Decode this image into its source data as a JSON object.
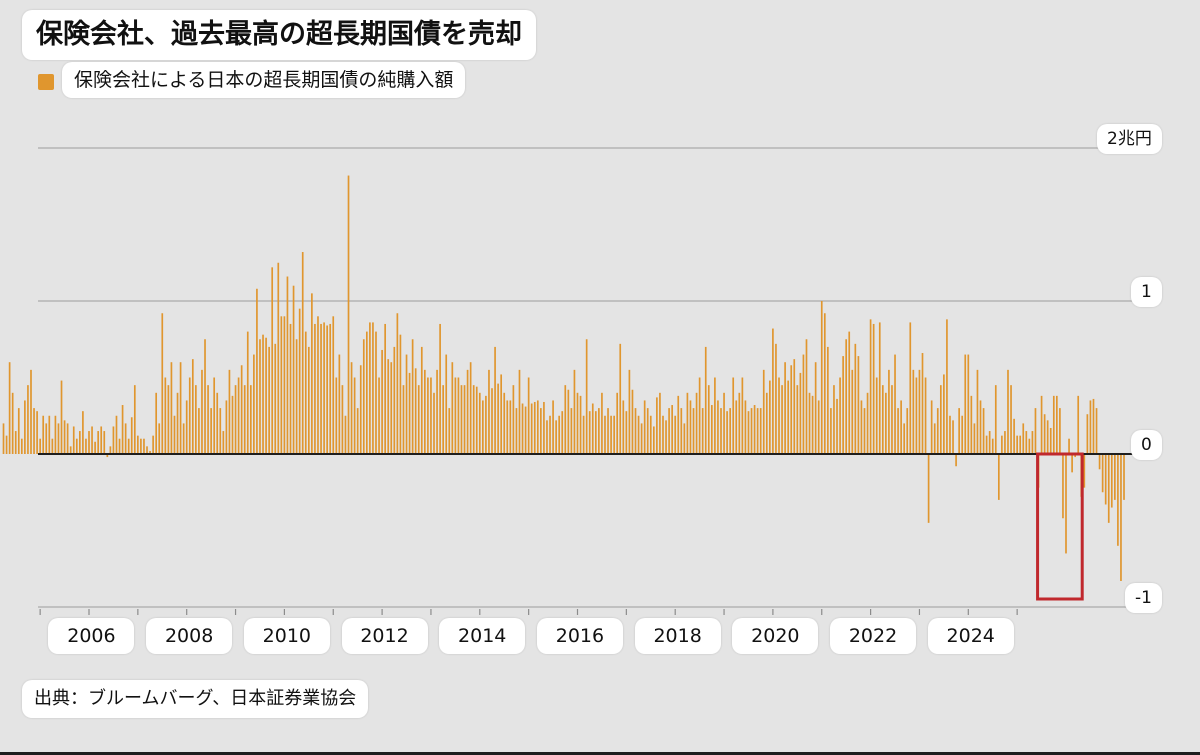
{
  "title": "保険会社、過去最高の超長期国債を売却",
  "legend": {
    "label": "保険会社による日本の超長期国債の純購入額",
    "color": "#e0962e"
  },
  "source": "出典：ブルームバーグ、日本証券業協会",
  "colors": {
    "bar": "#e0962e",
    "highlight_box": "#c0282d",
    "zero_line": "#1e1e1e",
    "grid": "#b4b4b4"
  },
  "chart_data": {
    "type": "bar",
    "title": "保険会社、過去最高の超長期国債を売却",
    "series": [
      {
        "name": "保険会社による日本の超長期国債の純購入額",
        "values": [
          0.2,
          0.12,
          0.6,
          0.4,
          0.15,
          0.3,
          0.1,
          0.35,
          0.45,
          0.55,
          0.3,
          0.28,
          0.1,
          0.25,
          0.2,
          0.25,
          0.1,
          0.25,
          0.2,
          0.48,
          0.22,
          0.2,
          0.05,
          0.18,
          0.1,
          0.15,
          0.28,
          0.1,
          0.15,
          0.18,
          0.08,
          0.15,
          0.18,
          0.15,
          -0.02,
          0.05,
          0.18,
          0.25,
          0.1,
          0.32,
          0.2,
          0.1,
          0.24,
          0.45,
          0.12,
          0.1,
          0.1,
          0.05,
          0.02,
          0.12,
          0.4,
          0.2,
          0.92,
          0.5,
          0.45,
          0.6,
          0.25,
          0.4,
          0.6,
          0.2,
          0.35,
          0.5,
          0.62,
          0.45,
          0.3,
          0.55,
          0.75,
          0.45,
          0.3,
          0.5,
          0.4,
          0.3,
          0.15,
          0.35,
          0.55,
          0.38,
          0.45,
          0.5,
          0.58,
          0.45,
          0.8,
          0.45,
          0.65,
          1.08,
          0.75,
          0.78,
          0.76,
          0.7,
          1.22,
          0.72,
          1.25,
          0.9,
          0.9,
          1.16,
          0.85,
          1.1,
          0.75,
          0.95,
          1.32,
          0.8,
          0.7,
          1.05,
          0.85,
          0.9,
          0.85,
          0.86,
          0.84,
          0.85,
          0.9,
          0.5,
          0.65,
          0.45,
          0.25,
          1.82,
          0.6,
          0.5,
          0.3,
          0.58,
          0.75,
          0.8,
          0.86,
          0.86,
          0.8,
          0.5,
          0.68,
          0.85,
          0.62,
          0.6,
          0.7,
          0.92,
          0.78,
          0.45,
          0.65,
          0.53,
          0.75,
          0.56,
          0.45,
          0.7,
          0.55,
          0.5,
          0.5,
          0.4,
          0.55,
          0.85,
          0.45,
          0.65,
          0.3,
          0.6,
          0.5,
          0.5,
          0.45,
          0.45,
          0.55,
          0.6,
          0.45,
          0.44,
          0.4,
          0.35,
          0.38,
          0.55,
          0.43,
          0.7,
          0.46,
          0.52,
          0.4,
          0.35,
          0.35,
          0.45,
          0.3,
          0.55,
          0.33,
          0.31,
          0.5,
          0.33,
          0.34,
          0.35,
          0.3,
          0.34,
          0.22,
          0.25,
          0.35,
          0.22,
          0.25,
          0.28,
          0.45,
          0.42,
          0.3,
          0.55,
          0.4,
          0.38,
          0.25,
          0.75,
          0.28,
          0.33,
          0.28,
          0.3,
          0.4,
          0.25,
          0.3,
          0.25,
          0.25,
          0.4,
          0.72,
          0.35,
          0.28,
          0.55,
          0.42,
          0.3,
          0.25,
          0.2,
          0.35,
          0.3,
          0.25,
          0.18,
          0.37,
          0.4,
          0.25,
          0.22,
          0.3,
          0.32,
          0.25,
          0.38,
          0.3,
          0.2,
          0.4,
          0.35,
          0.3,
          0.4,
          0.5,
          0.3,
          0.7,
          0.45,
          0.32,
          0.5,
          0.35,
          0.3,
          0.4,
          0.28,
          0.3,
          0.5,
          0.35,
          0.4,
          0.5,
          0.35,
          0.28,
          0.3,
          0.32,
          0.3,
          0.3,
          0.55,
          0.4,
          0.48,
          0.82,
          0.72,
          0.5,
          0.45,
          0.6,
          0.48,
          0.58,
          0.62,
          0.45,
          0.53,
          0.65,
          0.75,
          0.4,
          0.38,
          0.6,
          0.35,
          1.0,
          0.92,
          0.7,
          0.3,
          0.45,
          0.36,
          0.5,
          0.64,
          0.75,
          0.8,
          0.55,
          0.72,
          0.64,
          0.35,
          0.3,
          0.4,
          0.88,
          0.85,
          0.5,
          0.86,
          0.45,
          0.4,
          0.55,
          0.45,
          0.65,
          0.3,
          0.35,
          0.2,
          0.3,
          0.86,
          0.55,
          0.5,
          0.55,
          0.66,
          0.5,
          -0.45,
          0.35,
          0.2,
          0.3,
          0.45,
          0.52,
          0.88,
          0.25,
          0.22,
          -0.08,
          0.3,
          0.25,
          0.65,
          0.65,
          0.38,
          0.2,
          0.55,
          0.35,
          0.3,
          0.12,
          0.15,
          0.1,
          0.45,
          -0.3,
          0.12,
          0.15,
          0.55,
          0.45,
          0.23,
          0.12,
          0.12,
          0.2,
          0.15,
          0.1,
          0.15,
          0.3,
          -0.22,
          0.38,
          0.26,
          0.22,
          0.17,
          0.38,
          0.38,
          0.3,
          -0.42,
          -0.65,
          0.1,
          -0.12,
          -0.02,
          0.38,
          -0.28,
          -0.22,
          0.26,
          0.35,
          0.36,
          0.3,
          -0.1,
          -0.25,
          -0.33,
          -0.45,
          -0.35,
          -0.3,
          -0.6,
          -0.83,
          -0.3
        ]
      }
    ],
    "x_start": 2004.25,
    "x_step_years": 0.0625,
    "xlim": [
      2004.2,
      2027.4
    ],
    "x_ticks": [
      "2006",
      "2008",
      "2010",
      "2012",
      "2014",
      "2016",
      "2018",
      "2020",
      "2022",
      "2024"
    ],
    "y_ticks": [
      {
        "value": 2,
        "label": "2兆円"
      },
      {
        "value": 1,
        "label": "1"
      },
      {
        "value": 0,
        "label": "0"
      },
      {
        "value": -1,
        "label": "-1"
      }
    ],
    "ylim": [
      -1,
      2
    ],
    "grid": true,
    "legend_position": "top-left",
    "highlight": {
      "from": 2025.5,
      "to": 2026.25,
      "description": "red box around most recent bars"
    }
  }
}
